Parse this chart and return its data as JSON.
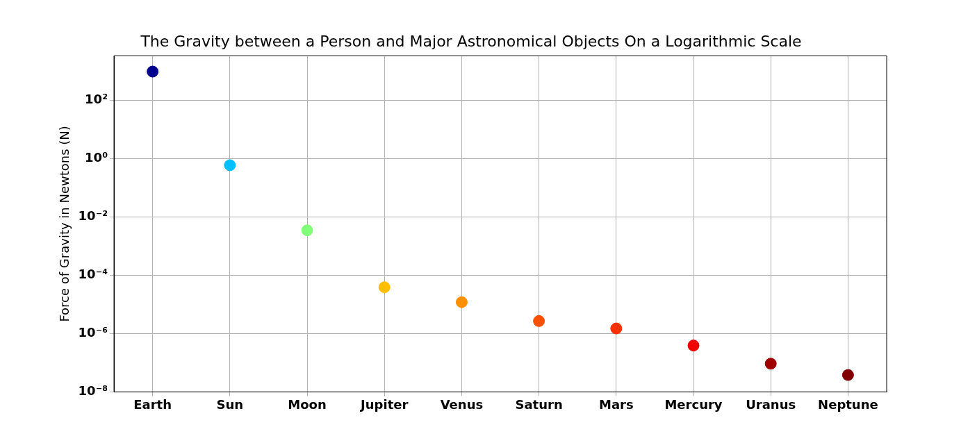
{
  "chart_data": {
    "type": "scatter",
    "title": "The Gravity between a Person and Major Astronomical Objects On a Logarithmic Scale",
    "ylabel": "Force of Gravity in Newtons (N)",
    "categories": [
      "Earth",
      "Sun",
      "Moon",
      "Jupiter",
      "Venus",
      "Saturn",
      "Mars",
      "Mercury",
      "Uranus",
      "Neptune"
    ],
    "values": [
      980,
      0.6,
      0.0035,
      3.9e-05,
      1.2e-05,
      2.7e-06,
      1.5e-06,
      3.9e-07,
      9.3e-08,
      3.8e-08
    ],
    "colors": [
      "#00008f",
      "#00bfff",
      "#80ff77",
      "#ffbf00",
      "#ff9000",
      "#ff5000",
      "#ff3000",
      "#f00000",
      "#a00000",
      "#800000"
    ],
    "log": "y",
    "ylim": [
      1e-08,
      3400
    ],
    "yticks": [
      {
        "value": 1e-08,
        "label": "10⁻⁸"
      },
      {
        "value": 1e-06,
        "label": "10⁻⁶"
      },
      {
        "value": 0.0001,
        "label": "10⁻⁴"
      },
      {
        "value": 0.01,
        "label": "10⁻²"
      },
      {
        "value": 1,
        "label": "10⁰"
      },
      {
        "value": 100,
        "label": "10²"
      }
    ],
    "grid": true,
    "marker": "circle",
    "legend": false
  }
}
